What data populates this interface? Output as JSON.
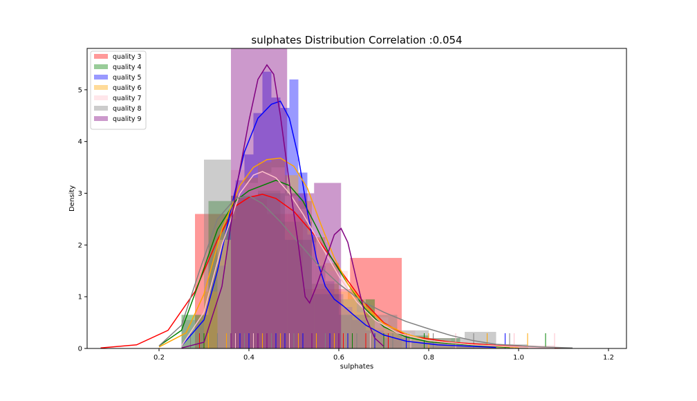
{
  "chart_data": {
    "type": "histogram-kde",
    "title": "sulphates Distribution Correlation :0.054",
    "xlabel": "sulphates",
    "ylabel": "Density",
    "xlim": [
      0.04,
      1.24
    ],
    "ylim": [
      0,
      5.8
    ],
    "xticks": [
      0.2,
      0.4,
      0.6,
      0.8,
      1.0,
      1.2
    ],
    "xtick_labels": [
      "0.2",
      "0.4",
      "0.6",
      "0.8",
      "1.0",
      "1.2"
    ],
    "yticks": [
      0,
      1,
      2,
      3,
      4,
      5
    ],
    "ytick_labels": [
      "0",
      "1",
      "2",
      "3",
      "4",
      "5"
    ],
    "legend_position": "top-left",
    "grid": false,
    "series": [
      {
        "name": "quality 3",
        "color": "#ff0000",
        "bar_opacity": 0.4,
        "bins": [
          [
            0.28,
            0.37,
            2.6
          ],
          [
            0.37,
            0.44,
            2.9
          ],
          [
            0.44,
            0.52,
            2.6
          ],
          [
            0.52,
            0.625,
            1.15
          ],
          [
            0.625,
            0.74,
            1.75
          ]
        ],
        "kde": [
          [
            0.07,
            0.01
          ],
          [
            0.15,
            0.07
          ],
          [
            0.22,
            0.35
          ],
          [
            0.28,
            1.1
          ],
          [
            0.33,
            2.1
          ],
          [
            0.37,
            2.75
          ],
          [
            0.4,
            2.92
          ],
          [
            0.43,
            2.98
          ],
          [
            0.46,
            2.9
          ],
          [
            0.5,
            2.65
          ],
          [
            0.55,
            2.15
          ],
          [
            0.6,
            1.55
          ],
          [
            0.65,
            0.95
          ],
          [
            0.7,
            0.5
          ],
          [
            0.75,
            0.25
          ],
          [
            0.85,
            0.12
          ],
          [
            0.95,
            0.06
          ],
          [
            1.1,
            0.01
          ]
        ],
        "rug": [
          0.29,
          0.33,
          0.4,
          0.45,
          0.52,
          0.61,
          0.66,
          0.71
        ]
      },
      {
        "name": "quality 4",
        "color": "#008000",
        "bar_opacity": 0.4,
        "bins": [
          [
            0.25,
            0.31,
            0.65
          ],
          [
            0.31,
            0.36,
            2.85
          ],
          [
            0.36,
            0.42,
            2.95
          ],
          [
            0.42,
            0.47,
            3.05
          ],
          [
            0.47,
            0.54,
            2.45
          ],
          [
            0.54,
            0.6,
            1.25
          ],
          [
            0.6,
            0.68,
            0.95
          ],
          [
            0.68,
            0.74,
            0.3
          ],
          [
            0.74,
            0.8,
            0.25
          ],
          [
            0.8,
            0.87,
            0.2
          ],
          [
            0.87,
            0.93,
            0.1
          ],
          [
            0.93,
            1.0,
            0.06
          ]
        ],
        "kde": [
          [
            0.2,
            0.05
          ],
          [
            0.25,
            0.35
          ],
          [
            0.29,
            1.3
          ],
          [
            0.33,
            2.3
          ],
          [
            0.37,
            2.85
          ],
          [
            0.4,
            3.05
          ],
          [
            0.43,
            3.15
          ],
          [
            0.46,
            3.25
          ],
          [
            0.49,
            3.15
          ],
          [
            0.52,
            2.85
          ],
          [
            0.55,
            2.35
          ],
          [
            0.58,
            1.8
          ],
          [
            0.62,
            1.25
          ],
          [
            0.66,
            0.75
          ],
          [
            0.7,
            0.42
          ],
          [
            0.75,
            0.22
          ],
          [
            0.8,
            0.13
          ],
          [
            0.9,
            0.06
          ],
          [
            0.98,
            0.02
          ]
        ],
        "rug": [
          0.3,
          0.36,
          0.41,
          0.47,
          0.52,
          0.58,
          0.63,
          0.7,
          0.79,
          1.06
        ]
      },
      {
        "name": "quality 5",
        "color": "#0000ff",
        "bar_opacity": 0.4,
        "bins": [
          [
            0.33,
            0.35,
            1.6
          ],
          [
            0.35,
            0.37,
            2.5
          ],
          [
            0.37,
            0.39,
            3.25
          ],
          [
            0.39,
            0.41,
            3.75
          ],
          [
            0.41,
            0.43,
            4.55
          ],
          [
            0.43,
            0.45,
            5.35
          ],
          [
            0.45,
            0.47,
            4.85
          ],
          [
            0.47,
            0.49,
            4.65
          ],
          [
            0.49,
            0.51,
            5.2
          ],
          [
            0.51,
            0.53,
            3.4
          ],
          [
            0.53,
            0.55,
            2.2
          ],
          [
            0.55,
            0.57,
            1.6
          ],
          [
            0.57,
            0.59,
            1.3
          ],
          [
            0.59,
            0.61,
            1.05
          ],
          [
            0.61,
            0.63,
            0.8
          ],
          [
            0.63,
            0.66,
            0.55
          ],
          [
            0.66,
            0.7,
            0.35
          ],
          [
            0.7,
            0.76,
            0.2
          ],
          [
            0.76,
            0.84,
            0.12
          ],
          [
            0.84,
            0.95,
            0.07
          ]
        ],
        "kde": [
          [
            0.25,
            0.05
          ],
          [
            0.3,
            0.55
          ],
          [
            0.33,
            1.5
          ],
          [
            0.36,
            2.7
          ],
          [
            0.39,
            3.8
          ],
          [
            0.42,
            4.45
          ],
          [
            0.45,
            4.72
          ],
          [
            0.47,
            4.78
          ],
          [
            0.49,
            4.45
          ],
          [
            0.51,
            3.7
          ],
          [
            0.53,
            2.65
          ],
          [
            0.55,
            1.75
          ],
          [
            0.57,
            1.2
          ],
          [
            0.59,
            0.95
          ],
          [
            0.61,
            0.82
          ],
          [
            0.63,
            0.67
          ],
          [
            0.66,
            0.45
          ],
          [
            0.7,
            0.26
          ],
          [
            0.75,
            0.14
          ],
          [
            0.82,
            0.07
          ],
          [
            0.95,
            0.02
          ]
        ],
        "rug": [
          0.33,
          0.36,
          0.38,
          0.4,
          0.42,
          0.44,
          0.46,
          0.48,
          0.5,
          0.52,
          0.55,
          0.58,
          0.62,
          0.68,
          0.75,
          0.86,
          0.97
        ]
      },
      {
        "name": "quality 6",
        "color": "#ffa500",
        "bar_opacity": 0.4,
        "bins": [
          [
            0.3,
            0.33,
            1.1
          ],
          [
            0.33,
            0.36,
            2.1
          ],
          [
            0.36,
            0.39,
            2.95
          ],
          [
            0.39,
            0.42,
            3.3
          ],
          [
            0.42,
            0.45,
            3.6
          ],
          [
            0.45,
            0.48,
            3.65
          ],
          [
            0.48,
            0.51,
            3.35
          ],
          [
            0.51,
            0.54,
            2.85
          ],
          [
            0.54,
            0.57,
            2.15
          ],
          [
            0.57,
            0.6,
            1.65
          ],
          [
            0.6,
            0.64,
            1.1
          ],
          [
            0.64,
            0.68,
            0.7
          ],
          [
            0.68,
            0.73,
            0.4
          ],
          [
            0.73,
            0.8,
            0.22
          ],
          [
            0.8,
            0.9,
            0.1
          ],
          [
            0.9,
            1.02,
            0.05
          ]
        ],
        "kde": [
          [
            0.2,
            0.03
          ],
          [
            0.26,
            0.3
          ],
          [
            0.3,
            1.05
          ],
          [
            0.34,
            2.3
          ],
          [
            0.38,
            3.15
          ],
          [
            0.41,
            3.5
          ],
          [
            0.44,
            3.65
          ],
          [
            0.47,
            3.68
          ],
          [
            0.5,
            3.52
          ],
          [
            0.53,
            3.1
          ],
          [
            0.56,
            2.4
          ],
          [
            0.59,
            1.75
          ],
          [
            0.62,
            1.25
          ],
          [
            0.66,
            0.8
          ],
          [
            0.7,
            0.48
          ],
          [
            0.75,
            0.28
          ],
          [
            0.8,
            0.15
          ],
          [
            0.9,
            0.07
          ],
          [
            1.0,
            0.02
          ]
        ],
        "rug": [
          0.31,
          0.35,
          0.39,
          0.43,
          0.47,
          0.51,
          0.55,
          0.59,
          0.64,
          0.72,
          0.8,
          0.93,
          1.02
        ]
      },
      {
        "name": "quality 7",
        "color": "#ffc0cb",
        "bar_opacity": 0.4,
        "bins": [
          [
            0.33,
            0.36,
            2.1
          ],
          [
            0.36,
            0.39,
            3.45
          ],
          [
            0.39,
            0.42,
            3.2
          ],
          [
            0.42,
            0.45,
            3.4
          ],
          [
            0.45,
            0.48,
            3.5
          ],
          [
            0.48,
            0.51,
            2.95
          ],
          [
            0.51,
            0.54,
            2.7
          ],
          [
            0.54,
            0.58,
            2.05
          ],
          [
            0.58,
            0.62,
            1.5
          ],
          [
            0.62,
            0.66,
            0.95
          ],
          [
            0.66,
            0.71,
            0.6
          ],
          [
            0.71,
            0.77,
            0.35
          ],
          [
            0.77,
            0.85,
            0.2
          ],
          [
            0.85,
            0.95,
            0.1
          ],
          [
            0.95,
            1.08,
            0.06
          ]
        ],
        "kde": [
          [
            0.25,
            0.05
          ],
          [
            0.3,
            0.7
          ],
          [
            0.34,
            2.0
          ],
          [
            0.38,
            3.0
          ],
          [
            0.41,
            3.35
          ],
          [
            0.43,
            3.42
          ],
          [
            0.46,
            3.3
          ],
          [
            0.49,
            3.0
          ],
          [
            0.52,
            2.6
          ],
          [
            0.56,
            2.0
          ],
          [
            0.6,
            1.4
          ],
          [
            0.64,
            0.9
          ],
          [
            0.68,
            0.55
          ],
          [
            0.73,
            0.3
          ],
          [
            0.8,
            0.15
          ],
          [
            0.9,
            0.07
          ],
          [
            1.0,
            0.03
          ],
          [
            1.08,
            0.01
          ]
        ],
        "rug": [
          0.33,
          0.37,
          0.41,
          0.45,
          0.49,
          0.54,
          0.6,
          0.67,
          0.76,
          0.86,
          0.99,
          1.08
        ]
      },
      {
        "name": "quality 8",
        "color": "#808080",
        "bar_opacity": 0.4,
        "bins": [
          [
            0.25,
            0.3,
            0.55
          ],
          [
            0.3,
            0.36,
            3.65
          ],
          [
            0.36,
            0.42,
            2.95
          ],
          [
            0.42,
            0.48,
            3.0
          ],
          [
            0.48,
            0.54,
            2.1
          ],
          [
            0.54,
            0.6,
            1.05
          ],
          [
            0.6,
            0.66,
            0.65
          ],
          [
            0.66,
            0.73,
            0.65
          ],
          [
            0.73,
            0.8,
            0.35
          ],
          [
            0.8,
            0.88,
            0.2
          ],
          [
            0.88,
            0.95,
            0.32
          ],
          [
            0.95,
            1.02,
            0.08
          ]
        ],
        "kde": [
          [
            0.2,
            0.05
          ],
          [
            0.25,
            0.45
          ],
          [
            0.29,
            1.5
          ],
          [
            0.33,
            2.5
          ],
          [
            0.37,
            2.9
          ],
          [
            0.4,
            2.95
          ],
          [
            0.43,
            2.8
          ],
          [
            0.47,
            2.45
          ],
          [
            0.51,
            2.05
          ],
          [
            0.55,
            1.65
          ],
          [
            0.6,
            1.25
          ],
          [
            0.65,
            0.92
          ],
          [
            0.7,
            0.7
          ],
          [
            0.75,
            0.52
          ],
          [
            0.8,
            0.38
          ],
          [
            0.85,
            0.25
          ],
          [
            0.9,
            0.15
          ],
          [
            0.95,
            0.08
          ],
          [
            1.05,
            0.03
          ],
          [
            1.12,
            0.01
          ]
        ],
        "rug": [
          0.27,
          0.33,
          0.39,
          0.45,
          0.5,
          0.57,
          0.64,
          0.72,
          0.81,
          0.9,
          0.98
        ]
      },
      {
        "name": "quality 9",
        "color": "#800080",
        "bar_opacity": 0.4,
        "bins": [
          [
            0.36,
            0.485,
            5.9
          ],
          [
            0.485,
            0.545,
            3.0
          ],
          [
            0.545,
            0.605,
            3.2
          ]
        ],
        "kde": [
          [
            0.25,
            0.01
          ],
          [
            0.3,
            0.12
          ],
          [
            0.34,
            1.2
          ],
          [
            0.37,
            3.0
          ],
          [
            0.4,
            4.4
          ],
          [
            0.42,
            5.2
          ],
          [
            0.44,
            5.48
          ],
          [
            0.455,
            5.3
          ],
          [
            0.47,
            4.5
          ],
          [
            0.49,
            3.2
          ],
          [
            0.51,
            2.0
          ],
          [
            0.525,
            1.0
          ],
          [
            0.535,
            0.88
          ],
          [
            0.55,
            1.2
          ],
          [
            0.57,
            1.7
          ],
          [
            0.59,
            2.2
          ],
          [
            0.605,
            2.32
          ],
          [
            0.62,
            2.05
          ],
          [
            0.64,
            1.3
          ],
          [
            0.66,
            0.6
          ],
          [
            0.68,
            0.2
          ],
          [
            0.7,
            0.04
          ]
        ],
        "rug": [
          0.36,
          0.42,
          0.44,
          0.54,
          0.6
        ]
      }
    ]
  }
}
